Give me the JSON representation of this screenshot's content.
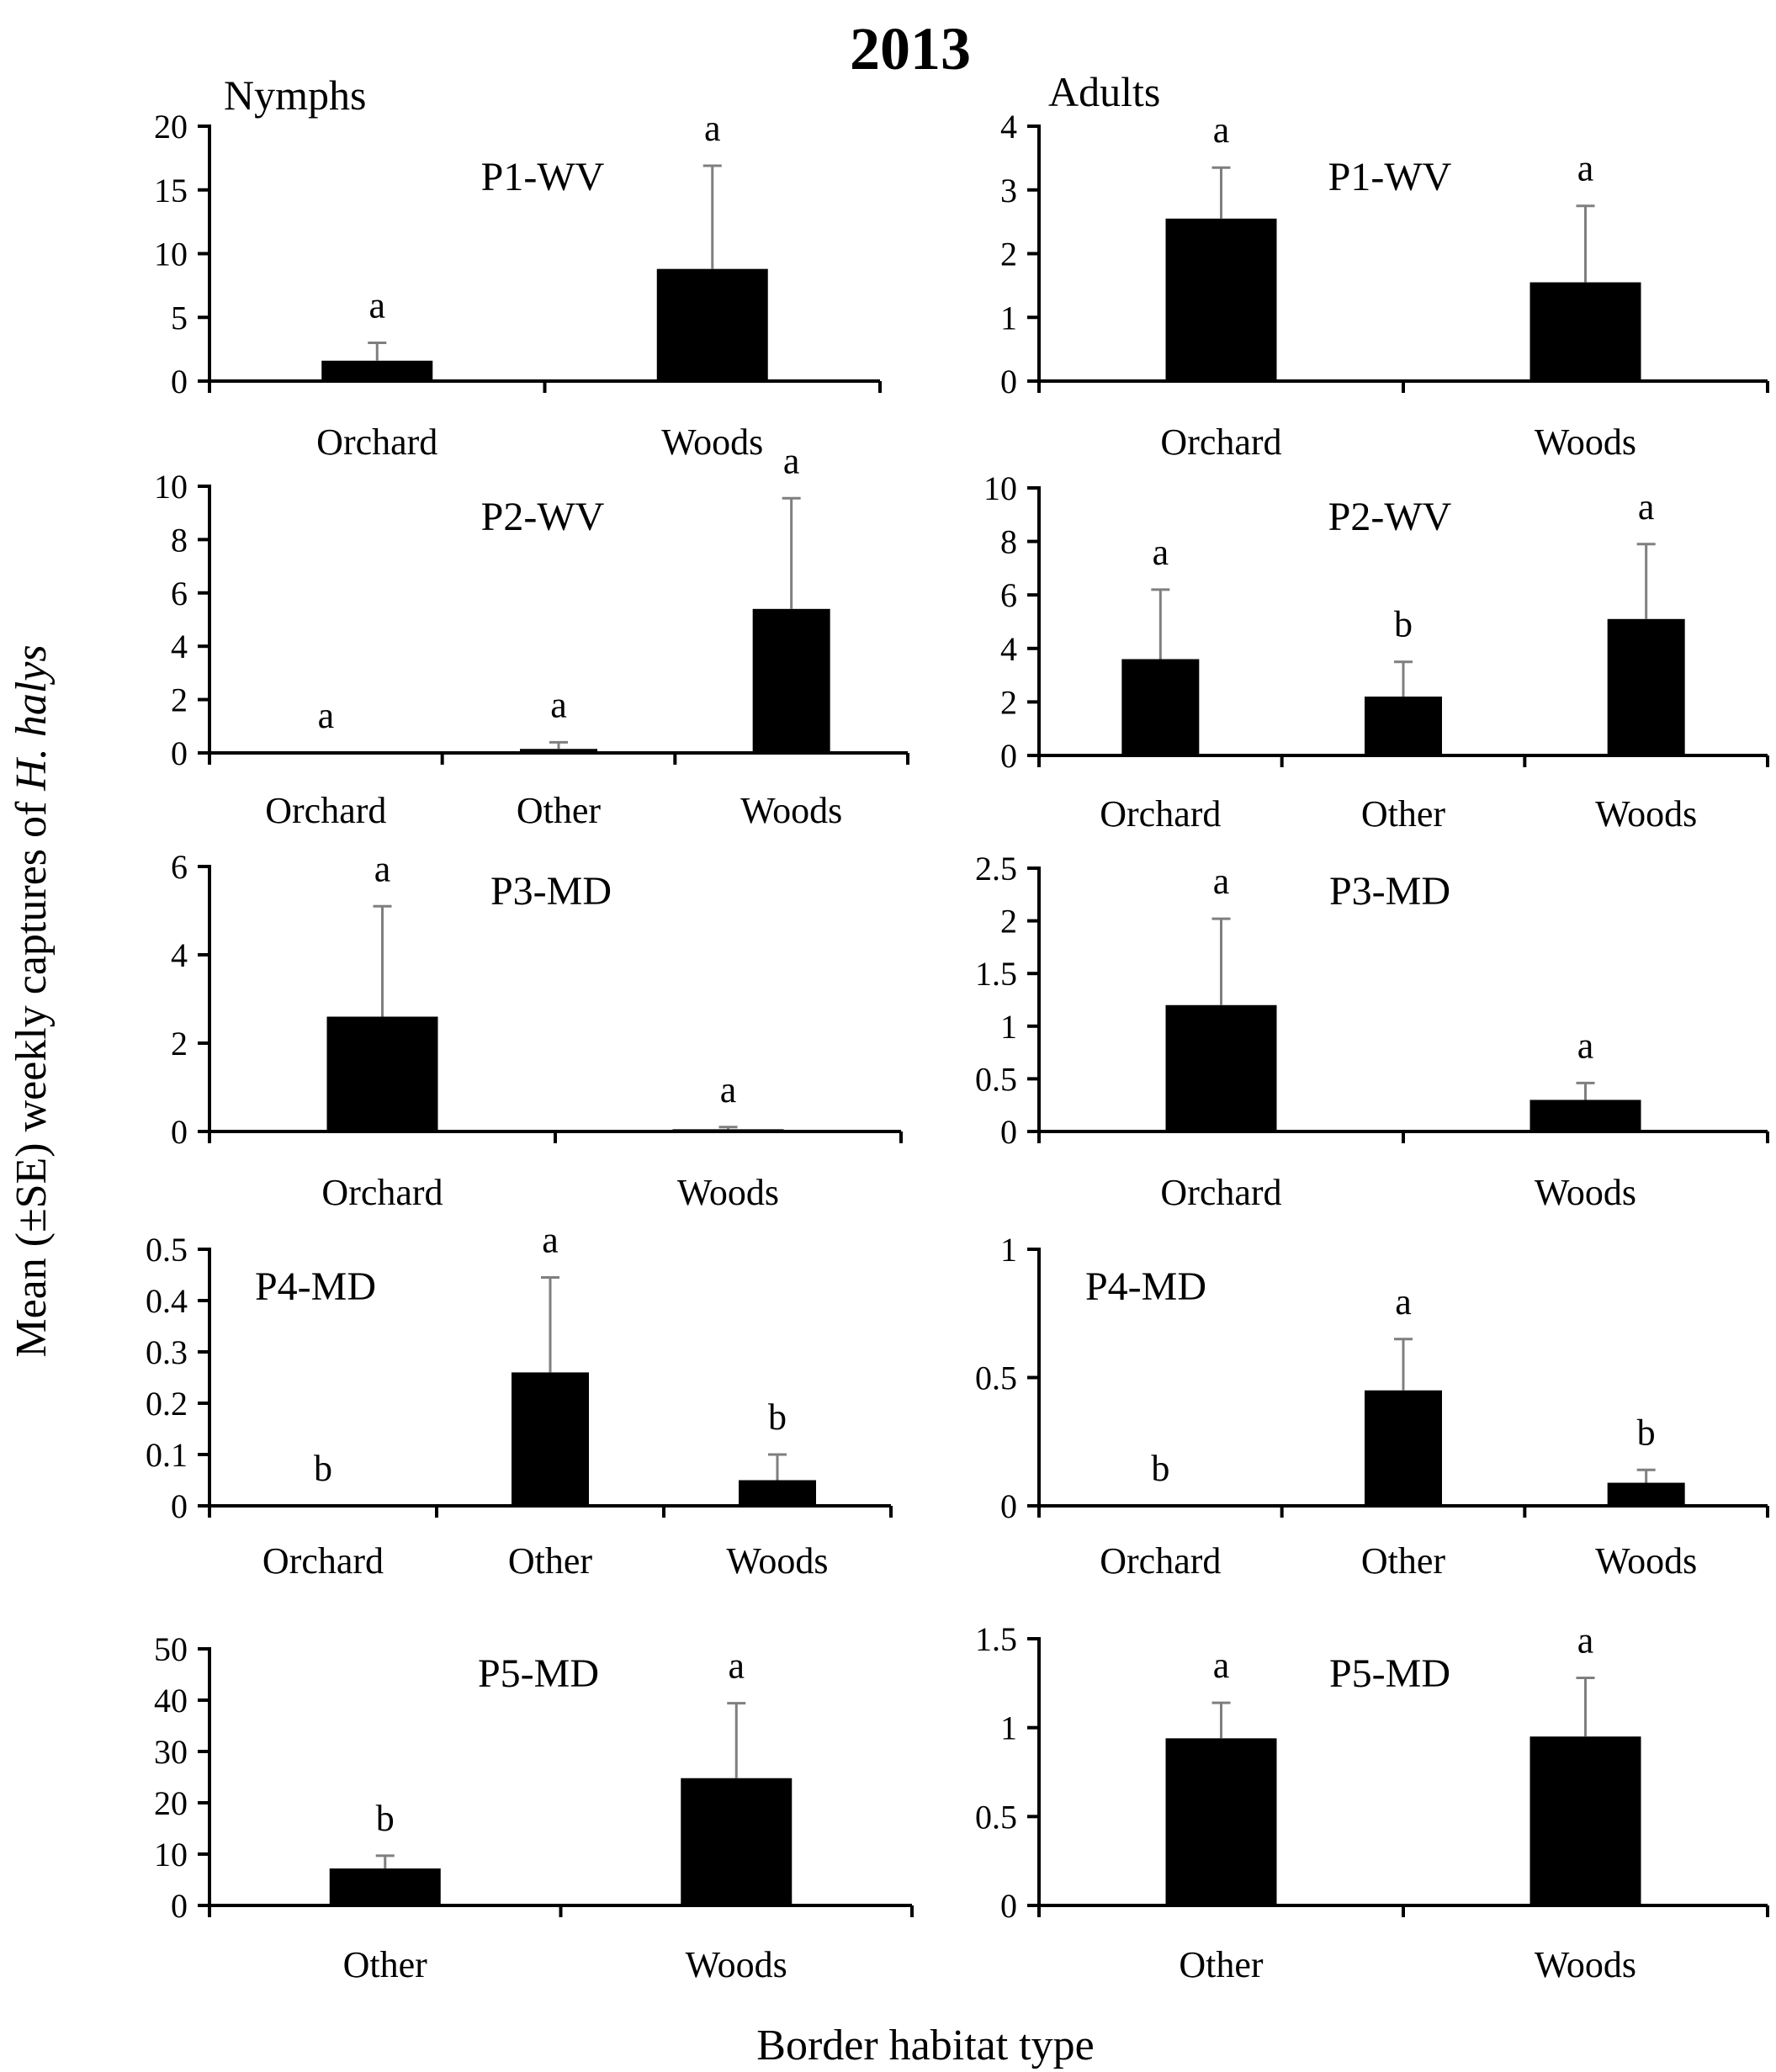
{
  "figure": {
    "title": "2013",
    "ylabel_pre": "Mean (±SE) weekly captures of ",
    "ylabel_italic": "H. halys",
    "xlabel": "Border habitat type",
    "column_labels": [
      "Nymphs",
      "Adults"
    ]
  },
  "chart_data": [
    {
      "type": "bar",
      "panel": "P1-WV",
      "stage": "Nymphs",
      "categories": [
        "Orchard",
        "Woods"
      ],
      "values": [
        1.6,
        8.8
      ],
      "errors": [
        1.4,
        8.1
      ],
      "letters": [
        "a",
        "a"
      ],
      "ylim": [
        0,
        20
      ],
      "yticks": [
        "0",
        "5",
        "10",
        "15",
        "20"
      ]
    },
    {
      "type": "bar",
      "panel": "P1-WV",
      "stage": "Adults",
      "categories": [
        "Orchard",
        "Woods"
      ],
      "values": [
        2.55,
        1.55
      ],
      "errors": [
        0.8,
        1.2
      ],
      "letters": [
        "a",
        "a"
      ],
      "ylim": [
        0,
        4
      ],
      "yticks": [
        "0",
        "1",
        "2",
        "3",
        "4"
      ]
    },
    {
      "type": "bar",
      "panel": "P2-WV",
      "stage": "Nymphs",
      "categories": [
        "Orchard",
        "Other",
        "Woods"
      ],
      "values": [
        0,
        0.15,
        5.4
      ],
      "errors": [
        0,
        0.25,
        4.15
      ],
      "letters": [
        "a",
        "a",
        "a"
      ],
      "ylim": [
        0,
        10
      ],
      "yticks": [
        "0",
        "2",
        "4",
        "6",
        "8",
        "10"
      ]
    },
    {
      "type": "bar",
      "panel": "P2-WV",
      "stage": "Adults",
      "categories": [
        "Orchard",
        "Other",
        "Woods"
      ],
      "values": [
        3.6,
        2.2,
        5.1
      ],
      "errors": [
        2.6,
        1.3,
        2.8
      ],
      "letters": [
        "a",
        "b",
        "a"
      ],
      "ylim": [
        0,
        10
      ],
      "yticks": [
        "0",
        "2",
        "4",
        "6",
        "8",
        "10"
      ]
    },
    {
      "type": "bar",
      "panel": "P3-MD",
      "stage": "Nymphs",
      "categories": [
        "Orchard",
        "Woods"
      ],
      "values": [
        2.6,
        0.05
      ],
      "errors": [
        2.5,
        0.05
      ],
      "letters": [
        "a",
        "a"
      ],
      "ylim": [
        0,
        6
      ],
      "yticks": [
        "0",
        "2",
        "4",
        "6"
      ]
    },
    {
      "type": "bar",
      "panel": "P3-MD",
      "stage": "Adults",
      "categories": [
        "Orchard",
        "Woods"
      ],
      "values": [
        1.2,
        0.3
      ],
      "errors": [
        0.82,
        0.16
      ],
      "letters": [
        "a",
        "a"
      ],
      "ylim": [
        0,
        2.5
      ],
      "yticks": [
        "0",
        "0.5",
        "1",
        "1.5",
        "2",
        "2.5"
      ]
    },
    {
      "type": "bar",
      "panel": "P4-MD",
      "stage": "Nymphs",
      "categories": [
        "Orchard",
        "Other",
        "Woods"
      ],
      "values": [
        0,
        0.26,
        0.05
      ],
      "errors": [
        0,
        0.185,
        0.05
      ],
      "letters": [
        "b",
        "a",
        "b"
      ],
      "ylim": [
        0,
        0.5
      ],
      "yticks": [
        "0",
        "0.1",
        "0.2",
        "0.3",
        "0.4",
        "0.5"
      ]
    },
    {
      "type": "bar",
      "panel": "P4-MD",
      "stage": "Adults",
      "categories": [
        "Orchard",
        "Other",
        "Woods"
      ],
      "values": [
        0,
        0.45,
        0.09
      ],
      "errors": [
        0,
        0.2,
        0.05
      ],
      "letters": [
        "b",
        "a",
        "b"
      ],
      "ylim": [
        0,
        1
      ],
      "yticks": [
        "0",
        "0.5",
        "1"
      ]
    },
    {
      "type": "bar",
      "panel": "P5-MD",
      "stage": "Nymphs",
      "categories": [
        "Other",
        "Woods"
      ],
      "values": [
        7.2,
        24.8
      ],
      "errors": [
        2.5,
        14.6
      ],
      "letters": [
        "b",
        "a"
      ],
      "ylim": [
        0,
        50
      ],
      "yticks": [
        "0",
        "10",
        "20",
        "30",
        "40",
        "50"
      ]
    },
    {
      "type": "bar",
      "panel": "P5-MD",
      "stage": "Adults",
      "categories": [
        "Other",
        "Woods"
      ],
      "values": [
        0.94,
        0.95
      ],
      "errors": [
        0.2,
        0.33
      ],
      "letters": [
        "a",
        "a"
      ],
      "ylim": [
        0,
        1.5
      ],
      "yticks": [
        "0",
        "0.5",
        "1",
        "1.5"
      ]
    }
  ]
}
